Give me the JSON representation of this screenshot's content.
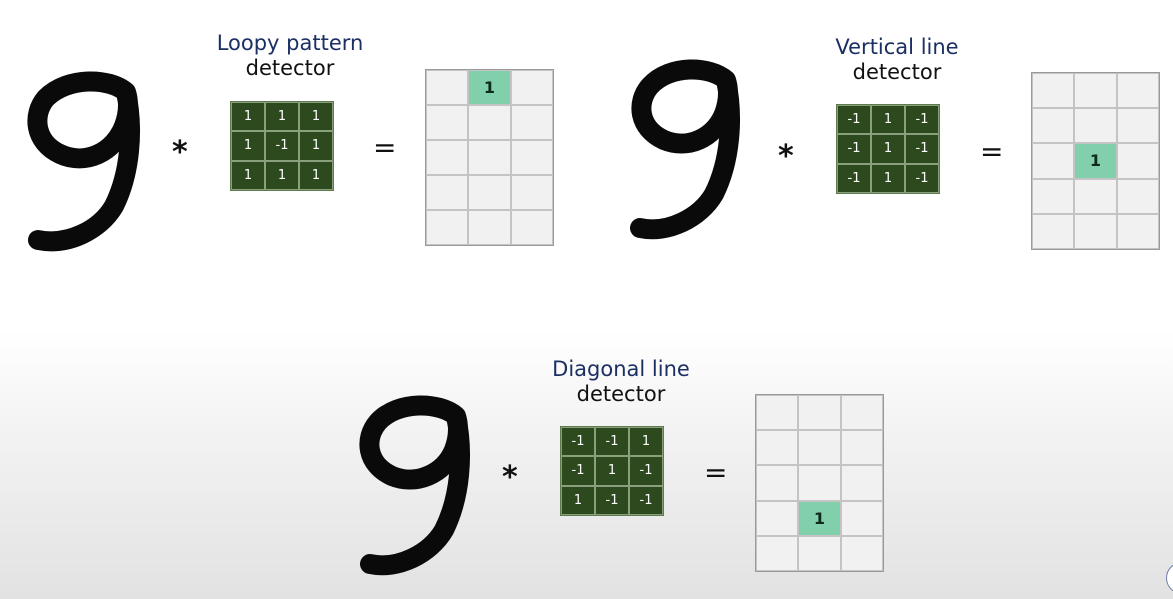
{
  "panels": [
    {
      "id": "loopy",
      "title_line1": "Loopy pattern",
      "title_line2": "detector",
      "operator": "*",
      "equals": "=",
      "kernel": [
        "1",
        "1",
        "1",
        "1",
        "-1",
        "1",
        "1",
        "1",
        "1"
      ],
      "output": [
        "",
        "1",
        "",
        "",
        "",
        "",
        "",
        "",
        "",
        "",
        "",
        "",
        "",
        "",
        ""
      ]
    },
    {
      "id": "vertical",
      "title_line1": "Vertical line",
      "title_line2": "detector",
      "operator": "*",
      "equals": "=",
      "kernel": [
        "-1",
        "1",
        "-1",
        "-1",
        "1",
        "-1",
        "-1",
        "1",
        "-1"
      ],
      "output": [
        "",
        "",
        "",
        "",
        "",
        "",
        "",
        "1",
        "",
        "",
        "",
        "",
        "",
        "",
        ""
      ]
    },
    {
      "id": "diagonal",
      "title_line1": "Diagonal line",
      "title_line2": "detector",
      "operator": "*",
      "equals": "=",
      "kernel": [
        "-1",
        "-1",
        "1",
        "-1",
        "1",
        "-1",
        "1",
        "-1",
        "-1"
      ],
      "output": [
        "",
        "",
        "",
        "",
        "",
        "",
        "",
        "",
        "",
        "",
        "1",
        "",
        "",
        "",
        ""
      ]
    }
  ],
  "colors": {
    "kernel_bg": "#2d4a1e",
    "output_highlight": "#82cfac",
    "title_line1": "#1b2f63"
  },
  "icons": {
    "digit": "handwritten-nine-image"
  }
}
